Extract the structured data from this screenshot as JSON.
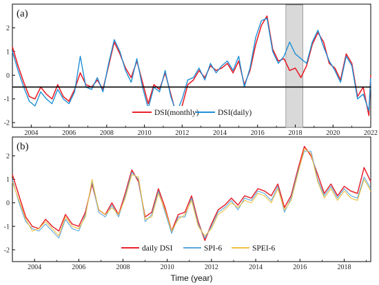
{
  "colors": {
    "dsi_monthly": "#e8202a",
    "dsi_daily": "#1d8fd6",
    "daily_dsi": "#e8202a",
    "spi6": "#5aa7dd",
    "spei6": "#f0c040",
    "shade": "#d9d9d9",
    "threshold": "#000000"
  },
  "chart_data": [
    {
      "type": "line",
      "panel_label": "(a)",
      "xlim": [
        2003.0,
        2022.0
      ],
      "ylim": [
        -2.2,
        3.0
      ],
      "xticks": [
        2004,
        2006,
        2008,
        2010,
        2012,
        2014,
        2016,
        2018,
        2020,
        2022
      ],
      "yticks": [
        -2,
        -1,
        0,
        1,
        2
      ],
      "threshold_line": -0.5,
      "shaded_region": [
        2017.5,
        2018.4
      ],
      "legend": {
        "placement": "bottom-center",
        "entries": [
          "DSI(monthly)",
          "DSI(daily)"
        ]
      },
      "series": [
        {
          "name": "DSI(monthly)",
          "x": [
            2003.0,
            2003.3,
            2003.6,
            2003.9,
            2004.2,
            2004.5,
            2004.8,
            2005.1,
            2005.4,
            2005.7,
            2006.0,
            2006.3,
            2006.6,
            2006.9,
            2007.2,
            2007.5,
            2007.8,
            2008.1,
            2008.4,
            2008.7,
            2009.0,
            2009.3,
            2009.6,
            2009.9,
            2010.2,
            2010.5,
            2010.8,
            2011.1,
            2011.4,
            2011.7,
            2012.0,
            2012.3,
            2012.6,
            2012.9,
            2013.2,
            2013.5,
            2013.8,
            2014.1,
            2014.4,
            2014.7,
            2015.0,
            2015.3,
            2015.6,
            2015.9,
            2016.2,
            2016.5,
            2016.8,
            2017.1,
            2017.4,
            2017.7,
            2018.0,
            2018.3,
            2018.6,
            2018.9,
            2019.2,
            2019.5,
            2019.8,
            2020.1,
            2020.4,
            2020.7,
            2021.0,
            2021.3,
            2021.6,
            2021.9,
            2022.0
          ],
          "values": [
            1.2,
            0.4,
            -0.3,
            -0.9,
            -1.0,
            -0.5,
            -0.8,
            -1.0,
            -0.4,
            -0.9,
            -1.1,
            -0.6,
            0.1,
            -0.4,
            -0.5,
            -0.2,
            -0.6,
            0.4,
            1.4,
            0.9,
            0.3,
            -0.1,
            0.6,
            -0.3,
            -1.2,
            -0.4,
            -0.6,
            0.1,
            -0.8,
            -1.7,
            -1.3,
            -0.4,
            -0.2,
            0.2,
            -0.1,
            0.4,
            0.2,
            0.3,
            0.5,
            0.1,
            0.6,
            -0.4,
            0.2,
            1.3,
            2.1,
            2.5,
            1.1,
            0.6,
            0.7,
            0.2,
            0.3,
            -0.1,
            0.4,
            1.3,
            1.8,
            1.4,
            0.5,
            0.3,
            -0.2,
            0.9,
            0.5,
            -0.9,
            -0.5,
            -1.7,
            0.0
          ]
        },
        {
          "name": "DSI(daily)",
          "x": [
            2003.0,
            2003.3,
            2003.6,
            2003.9,
            2004.2,
            2004.5,
            2004.8,
            2005.1,
            2005.4,
            2005.7,
            2006.0,
            2006.3,
            2006.6,
            2006.9,
            2007.2,
            2007.5,
            2007.8,
            2008.1,
            2008.4,
            2008.7,
            2009.0,
            2009.3,
            2009.6,
            2009.9,
            2010.2,
            2010.5,
            2010.8,
            2011.1,
            2011.4,
            2011.7,
            2012.0,
            2012.3,
            2012.6,
            2012.9,
            2013.2,
            2013.5,
            2013.8,
            2014.1,
            2014.4,
            2014.7,
            2015.0,
            2015.3,
            2015.6,
            2015.9,
            2016.2,
            2016.5,
            2016.8,
            2017.1,
            2017.4,
            2017.7,
            2018.0,
            2018.3,
            2018.6,
            2018.9,
            2019.2,
            2019.5,
            2019.8,
            2020.1,
            2020.4,
            2020.7,
            2021.0,
            2021.3,
            2021.6,
            2021.9,
            2022.0
          ],
          "values": [
            1.0,
            0.2,
            -0.5,
            -1.1,
            -1.3,
            -0.7,
            -1.0,
            -1.2,
            -0.6,
            -1.0,
            -1.2,
            -0.7,
            0.8,
            -0.5,
            -0.6,
            -0.1,
            -0.7,
            0.5,
            1.5,
            1.0,
            0.2,
            -0.3,
            0.7,
            -0.5,
            -1.4,
            -0.5,
            -0.7,
            0.2,
            -0.9,
            -1.6,
            -1.0,
            -0.2,
            -0.1,
            0.3,
            -0.2,
            0.5,
            0.1,
            0.4,
            0.6,
            0.2,
            0.8,
            -0.5,
            0.3,
            1.6,
            2.3,
            2.4,
            1.0,
            0.5,
            0.8,
            1.4,
            0.9,
            0.7,
            0.5,
            1.4,
            1.9,
            1.2,
            0.6,
            0.2,
            -0.3,
            0.8,
            0.4,
            -1.0,
            -0.8,
            -1.5,
            -0.1
          ]
        }
      ]
    },
    {
      "type": "line",
      "panel_label": "(b)",
      "xlim": [
        2003.0,
        2019.2
      ],
      "ylim": [
        -2.5,
        2.8
      ],
      "xticks": [
        2004,
        2006,
        2008,
        2010,
        2012,
        2014,
        2016,
        2018
      ],
      "yticks": [
        -2,
        -1,
        0,
        1,
        2
      ],
      "xlabel": "Time (year)",
      "legend": {
        "placement": "bottom-center",
        "entries": [
          "daily DSI",
          "SPI-6",
          "SPEI-6"
        ]
      },
      "series": [
        {
          "name": "daily DSI",
          "x": [
            2003.0,
            2003.3,
            2003.6,
            2003.9,
            2004.2,
            2004.5,
            2004.8,
            2005.1,
            2005.4,
            2005.7,
            2006.0,
            2006.3,
            2006.6,
            2006.9,
            2007.2,
            2007.5,
            2007.8,
            2008.1,
            2008.4,
            2008.7,
            2009.0,
            2009.3,
            2009.6,
            2009.9,
            2010.2,
            2010.5,
            2010.8,
            2011.1,
            2011.4,
            2011.7,
            2012.0,
            2012.3,
            2012.6,
            2012.9,
            2013.2,
            2013.5,
            2013.8,
            2014.1,
            2014.4,
            2014.7,
            2015.0,
            2015.3,
            2015.6,
            2015.9,
            2016.2,
            2016.5,
            2016.8,
            2017.1,
            2017.4,
            2017.7,
            2018.0,
            2018.3,
            2018.6,
            2018.9,
            2019.2
          ],
          "values": [
            1.2,
            0.3,
            -0.6,
            -1.0,
            -1.1,
            -0.7,
            -1.0,
            -1.2,
            -0.5,
            -0.9,
            -1.0,
            -0.4,
            0.8,
            -0.3,
            -0.5,
            0.0,
            -0.5,
            0.4,
            1.4,
            0.9,
            -0.6,
            -0.4,
            0.6,
            -0.2,
            -1.2,
            -0.5,
            -0.4,
            0.3,
            -0.8,
            -1.6,
            -0.9,
            -0.3,
            -0.1,
            0.2,
            -0.1,
            0.3,
            0.2,
            0.6,
            0.5,
            0.3,
            0.8,
            -0.2,
            0.3,
            1.4,
            2.4,
            2.0,
            1.2,
            0.4,
            0.8,
            0.3,
            0.7,
            0.5,
            0.4,
            1.5,
            0.9
          ]
        },
        {
          "name": "SPI-6",
          "x": [
            2003.0,
            2003.3,
            2003.6,
            2003.9,
            2004.2,
            2004.5,
            2004.8,
            2005.1,
            2005.4,
            2005.7,
            2006.0,
            2006.3,
            2006.6,
            2006.9,
            2007.2,
            2007.5,
            2007.8,
            2008.1,
            2008.4,
            2008.7,
            2009.0,
            2009.3,
            2009.6,
            2009.9,
            2010.2,
            2010.5,
            2010.8,
            2011.1,
            2011.4,
            2011.7,
            2012.0,
            2012.3,
            2012.6,
            2012.9,
            2013.2,
            2013.5,
            2013.8,
            2014.1,
            2014.4,
            2014.7,
            2015.0,
            2015.3,
            2015.6,
            2015.9,
            2016.2,
            2016.5,
            2016.8,
            2017.1,
            2017.4,
            2017.7,
            2018.0,
            2018.3,
            2018.6,
            2018.9,
            2019.2
          ],
          "values": [
            1.0,
            0.0,
            -0.8,
            -1.1,
            -1.2,
            -0.9,
            -1.2,
            -1.5,
            -0.7,
            -1.1,
            -1.2,
            -0.5,
            0.9,
            -0.4,
            -0.6,
            -0.1,
            -0.6,
            0.3,
            1.3,
            1.0,
            -0.8,
            -0.5,
            0.5,
            -0.4,
            -1.3,
            -0.6,
            -0.6,
            0.2,
            -0.9,
            -1.5,
            -1.0,
            -0.4,
            -0.2,
            0.1,
            -0.3,
            0.2,
            0.1,
            0.5,
            0.4,
            0.1,
            0.7,
            -0.4,
            0.2,
            1.3,
            2.2,
            2.2,
            1.0,
            0.3,
            0.7,
            0.2,
            0.6,
            0.3,
            0.2,
            1.1,
            0.6
          ]
        },
        {
          "name": "SPEI-6",
          "x": [
            2003.0,
            2003.3,
            2003.6,
            2003.9,
            2004.2,
            2004.5,
            2004.8,
            2005.1,
            2005.4,
            2005.7,
            2006.0,
            2006.3,
            2006.6,
            2006.9,
            2007.2,
            2007.5,
            2007.8,
            2008.1,
            2008.4,
            2008.7,
            2009.0,
            2009.3,
            2009.6,
            2009.9,
            2010.2,
            2010.5,
            2010.8,
            2011.1,
            2011.4,
            2011.7,
            2012.0,
            2012.3,
            2012.6,
            2012.9,
            2013.2,
            2013.5,
            2013.8,
            2014.1,
            2014.4,
            2014.7,
            2015.0,
            2015.3,
            2015.6,
            2015.9,
            2016.2,
            2016.5,
            2016.8,
            2017.1,
            2017.4,
            2017.7,
            2018.0,
            2018.3,
            2018.6,
            2018.9,
            2019.2
          ],
          "values": [
            0.9,
            0.1,
            -0.7,
            -1.2,
            -1.1,
            -0.8,
            -1.1,
            -1.4,
            -0.6,
            -1.0,
            -1.1,
            -0.6,
            1.0,
            -0.3,
            -0.5,
            -0.2,
            -0.5,
            0.2,
            1.2,
            1.1,
            -0.7,
            -0.6,
            0.4,
            -0.3,
            -1.2,
            -0.7,
            -0.5,
            0.1,
            -1.0,
            -1.4,
            -1.1,
            -0.5,
            -0.3,
            0.0,
            -0.2,
            0.1,
            0.0,
            0.4,
            0.3,
            0.0,
            0.6,
            -0.3,
            0.1,
            1.2,
            2.3,
            2.1,
            0.9,
            0.2,
            0.6,
            0.1,
            0.5,
            0.2,
            0.1,
            1.0,
            0.5
          ]
        }
      ]
    }
  ]
}
